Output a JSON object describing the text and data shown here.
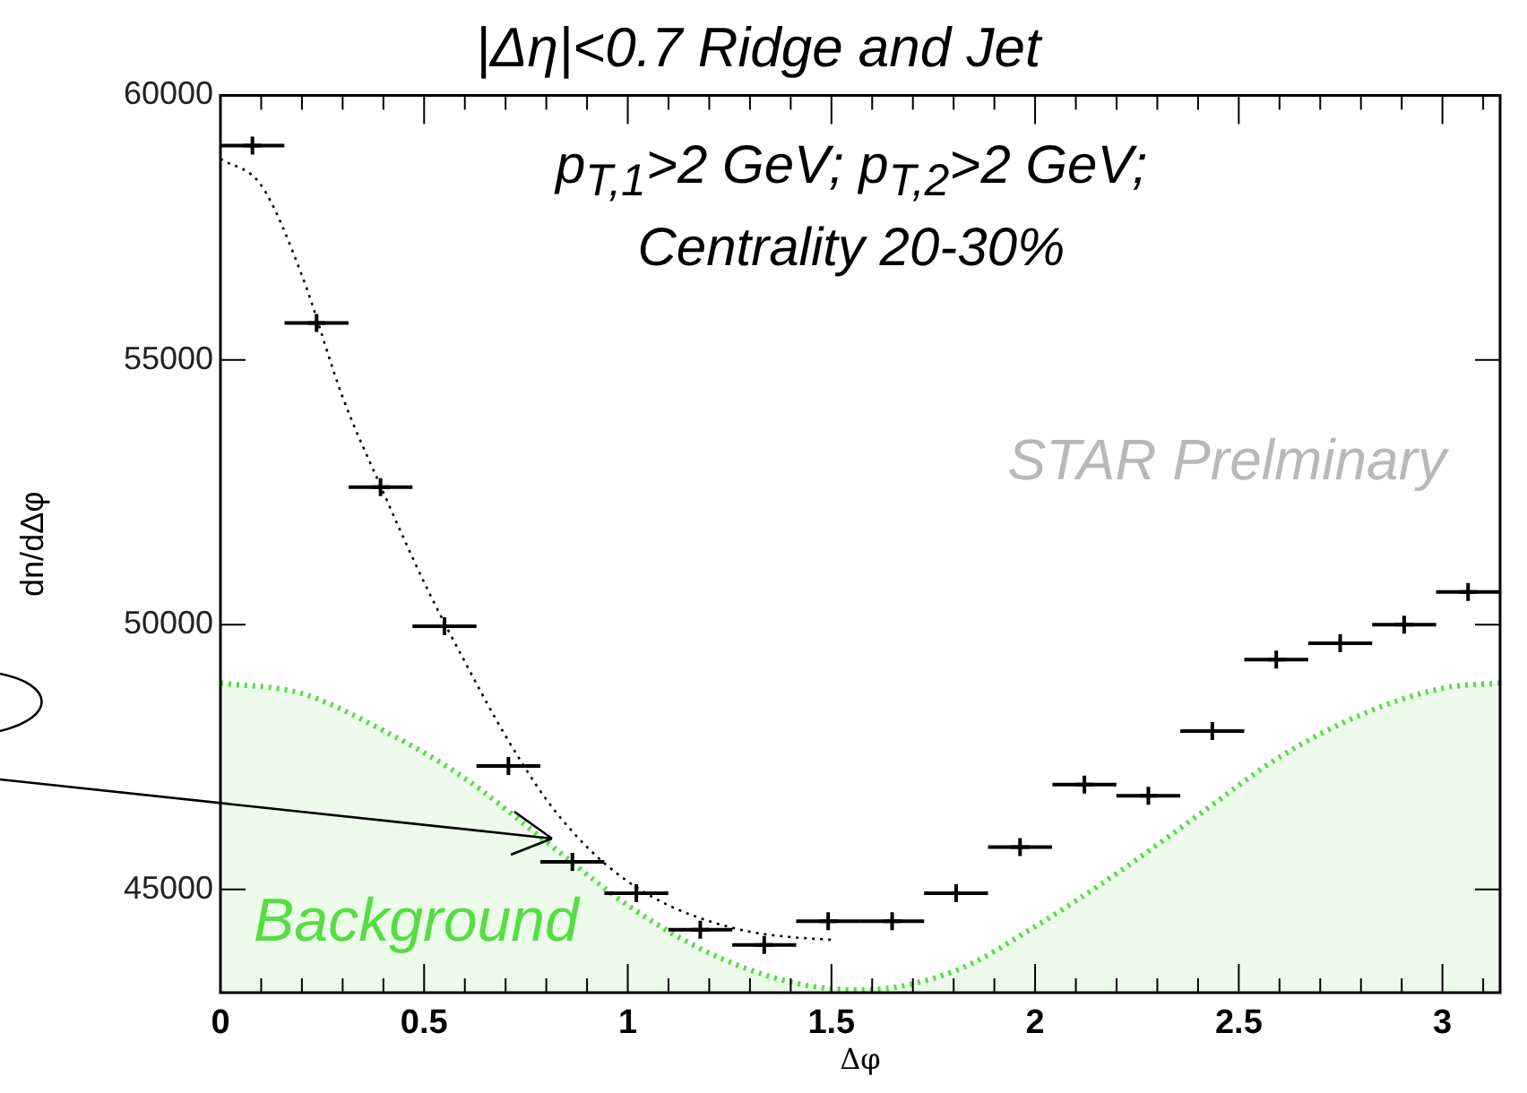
{
  "chart_data": {
    "type": "scatter",
    "title": "|Δη|<0.7 Ridge and Jet",
    "subtitle": "p$_{T,1}$>2 GeV; p$_{T,2}$>2 GeV; Centrality 20-30%",
    "xlabel": "Δφ",
    "ylabel": "dn/dΔφ",
    "x": [
      0.0785,
      0.236,
      0.393,
      0.55,
      0.707,
      0.864,
      1.021,
      1.178,
      1.335,
      1.492,
      1.649,
      1.806,
      1.963,
      2.121,
      2.278,
      2.435,
      2.592,
      2.749,
      2.906,
      3.063
    ],
    "series": [
      {
        "color": "#000000",
        "marker": "cross",
        "values": [
          59050,
          55700,
          52600,
          49970,
          47330,
          45520,
          44930,
          44240,
          43950,
          44400,
          44400,
          44930,
          45800,
          46980,
          46770,
          47990,
          49340,
          49650,
          50000,
          50620
        ],
        "xerrors": [
          0.0785,
          0.0785,
          0.0785,
          0.0785,
          0.0785,
          0.0785,
          0.0785,
          0.0785,
          0.0785,
          0.0785,
          0.0785,
          0.0785,
          0.0785,
          0.0785,
          0.0785,
          0.0785,
          0.0785,
          0.0785,
          0.0785,
          0.0785
        ]
      },
      {
        "type": "line",
        "color": "#000000",
        "line_style": "dotted",
        "x": [
          0,
          0.1,
          0.2,
          0.3,
          0.4,
          0.5,
          0.6,
          0.7,
          0.8,
          0.9,
          1.0,
          1.1,
          1.2,
          1.3,
          1.4,
          1.5
        ],
        "values": [
          58800,
          58300,
          56600,
          54300,
          52500,
          50800,
          49300,
          47900,
          46700,
          45800,
          45150,
          44700,
          44400,
          44200,
          44100,
          44050
        ]
      },
      {
        "type": "area",
        "color": "#55dd44",
        "line_style": "dotted",
        "x": [
          0,
          0.2,
          0.4,
          0.6,
          0.8,
          1.0,
          1.2,
          1.4,
          1.57,
          1.8,
          2.0,
          2.2,
          2.4,
          2.6,
          2.8,
          3.0,
          3.14
        ],
        "values": [
          48900,
          48700,
          48000,
          47100,
          45900,
          44700,
          43800,
          43250,
          43100,
          43450,
          44300,
          45300,
          46400,
          47500,
          48300,
          48800,
          48900
        ]
      }
    ],
    "annotations": [
      "Background",
      "STAR Prelminary"
    ],
    "xlim": [
      0,
      3.1416
    ],
    "ylim": [
      43050,
      60000
    ],
    "xticks": [
      0,
      {
        "value": 0.1,
        "label": null
      },
      {
        "value": 0.2,
        "label": null
      },
      {
        "value": 0.3,
        "label": null
      },
      {
        "value": 0.4,
        "label": null
      },
      0.5,
      {
        "value": 0.6,
        "label": null
      },
      {
        "value": 0.7,
        "label": null
      },
      {
        "value": 0.8,
        "label": null
      },
      {
        "value": 0.9,
        "label": null
      },
      1,
      {
        "value": 1.1,
        "label": null
      },
      {
        "value": 1.2,
        "label": null
      },
      {
        "value": 1.3,
        "label": null
      },
      {
        "value": 1.4,
        "label": null
      },
      1.5,
      {
        "value": 1.6,
        "label": null
      },
      {
        "value": 1.7,
        "label": null
      },
      {
        "value": 1.8,
        "label": null
      },
      {
        "value": 1.9,
        "label": null
      },
      2,
      {
        "value": 2.1,
        "label": null
      },
      {
        "value": 2.2,
        "label": null
      },
      {
        "value": 2.3,
        "label": null
      },
      {
        "value": 2.4,
        "label": null
      },
      2.5,
      {
        "value": 2.6,
        "label": null
      },
      {
        "value": 2.7,
        "label": null
      },
      {
        "value": 2.8,
        "label": null
      },
      {
        "value": 2.9,
        "label": null
      },
      3,
      {
        "value": 3.1,
        "label": null
      }
    ],
    "yticks": [
      45000,
      50000,
      55000,
      60000
    ],
    "legend": false
  }
}
